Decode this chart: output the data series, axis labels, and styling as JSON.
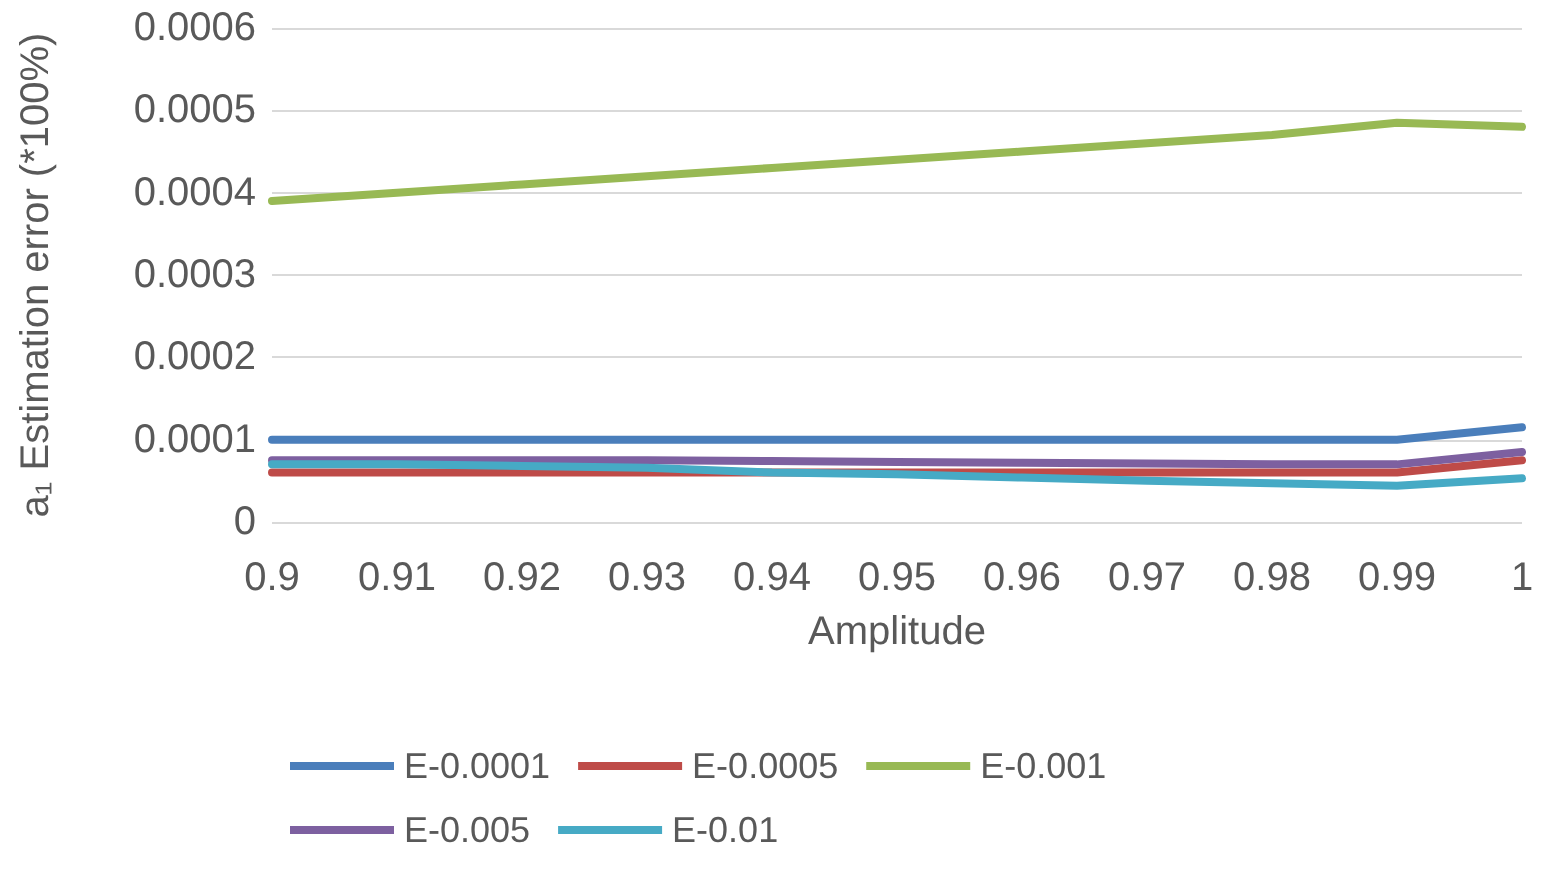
{
  "chart_data": {
    "type": "line",
    "xlabel": "Amplitude",
    "ylabel": "a₁ Estimation error (*100%)",
    "x": [
      0.9,
      0.91,
      0.92,
      0.93,
      0.94,
      0.95,
      0.96,
      0.97,
      0.98,
      0.99,
      1
    ],
    "xlim": [
      0.9,
      1
    ],
    "xticks": [
      0.9,
      0.91,
      0.92,
      0.93,
      0.94,
      0.95,
      0.96,
      0.97,
      0.98,
      0.99,
      1
    ],
    "ylim": [
      0,
      0.0006
    ],
    "yticks": [
      0,
      0.0001,
      0.0002,
      0.0003,
      0.0004,
      0.0005,
      0.0006
    ],
    "grid": "y",
    "legend": "bottom",
    "marker": "none",
    "line_style": "solid",
    "series": [
      {
        "name": "E-0.0001",
        "color": "#4a7ebb",
        "values": [
          0.0001,
          0.0001,
          0.0001,
          0.0001,
          0.0001,
          0.0001,
          0.0001,
          0.0001,
          0.0001,
          0.0001,
          0.000115
        ]
      },
      {
        "name": "E-0.0005",
        "color": "#be4b48",
        "values": [
          6e-05,
          6e-05,
          6e-05,
          6e-05,
          6e-05,
          6e-05,
          6e-05,
          6e-05,
          6e-05,
          6e-05,
          7.5e-05
        ]
      },
      {
        "name": "E-0.001",
        "color": "#98b954",
        "values": [
          0.00039,
          0.0004,
          0.00041,
          0.00042,
          0.00043,
          0.00044,
          0.00045,
          0.00046,
          0.00047,
          0.000485,
          0.00048
        ]
      },
      {
        "name": "E-0.005",
        "color": "#7d60a0",
        "values": [
          7.5e-05,
          7.5e-05,
          7.5e-05,
          7.5e-05,
          7.4e-05,
          7.3e-05,
          7.2e-05,
          7.1e-05,
          7e-05,
          7e-05,
          8.5e-05
        ]
      },
      {
        "name": "E-0.01",
        "color": "#46aac5",
        "values": [
          7e-05,
          7e-05,
          6.8e-05,
          6.6e-05,
          6e-05,
          5.8e-05,
          5.4e-05,
          5e-05,
          4.7e-05,
          4.4e-05,
          5.3e-05
        ]
      }
    ]
  }
}
